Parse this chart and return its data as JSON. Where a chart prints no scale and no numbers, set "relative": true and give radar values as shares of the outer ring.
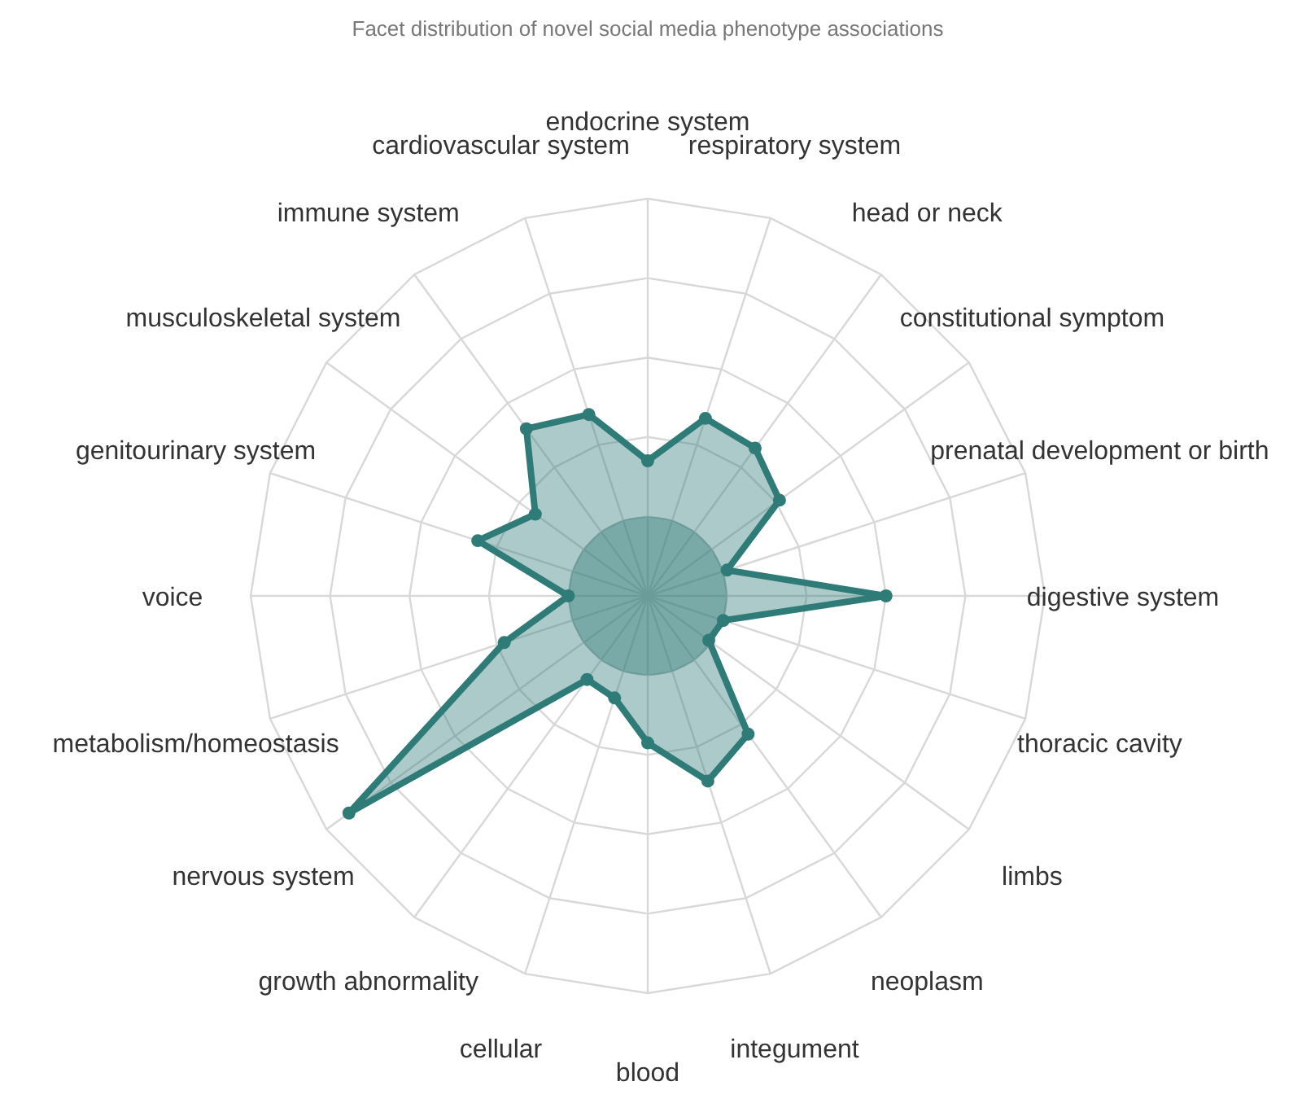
{
  "chart_data": {
    "type": "radar",
    "title": "Facet distribution of novel social media phenotype associations",
    "relative": true,
    "categories": [
      "endocrine system",
      "respiratory system",
      "head or neck",
      "constitutional symptom",
      "prenatal development or birth",
      "digestive system",
      "thoracic cavity",
      "limbs",
      "neoplasm",
      "integument",
      "blood",
      "cellular",
      "growth abnormality",
      "nervous system",
      "metabolism/homeostasis",
      "voice",
      "genitourinary system",
      "musculoskeletal system",
      "immune system",
      "cardiovascular system"
    ],
    "series": [
      {
        "color": "#2f7b77",
        "values": [
          0.34,
          0.47,
          0.46,
          0.41,
          0.21,
          0.6,
          0.2,
          0.19,
          0.43,
          0.49,
          0.37,
          0.27,
          0.26,
          0.93,
          0.38,
          0.2,
          0.45,
          0.35,
          0.52,
          0.48
        ]
      }
    ],
    "marker": "circle",
    "grid": true
  }
}
